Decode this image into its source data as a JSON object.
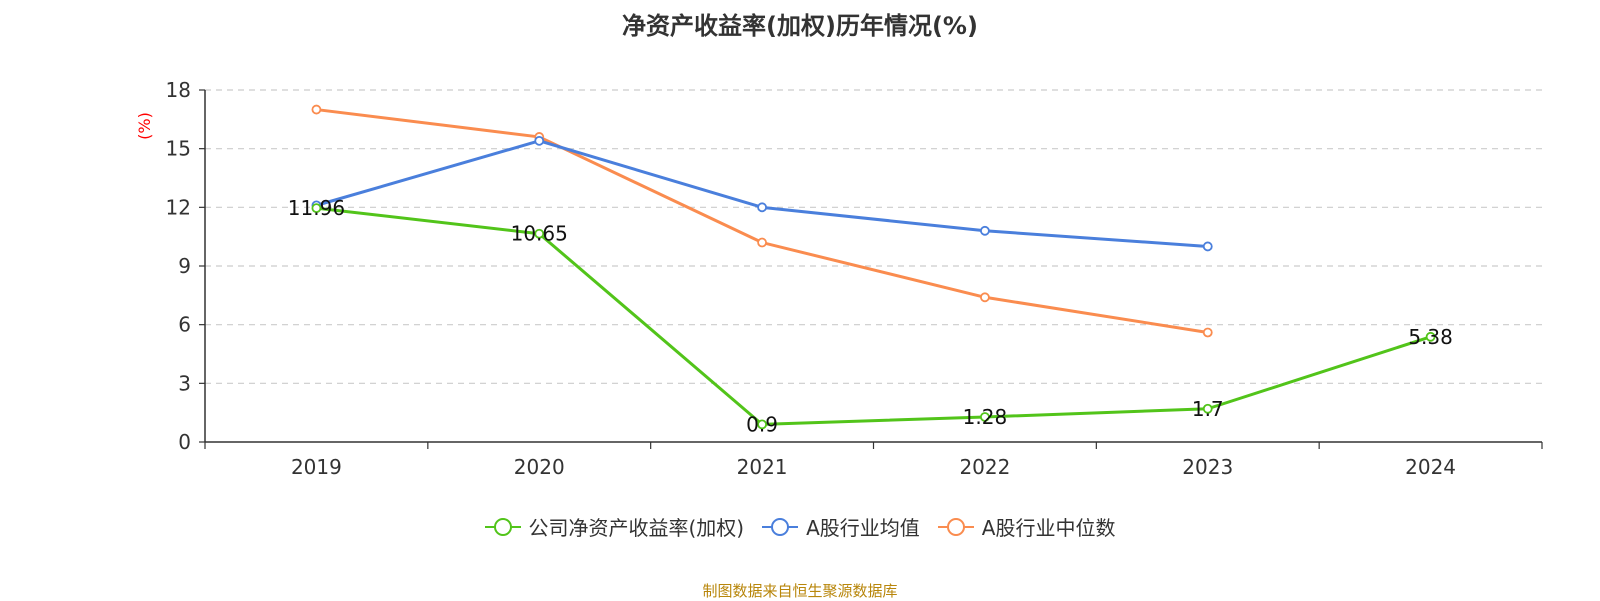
{
  "chart_data": {
    "type": "line",
    "title": "净资产收益率(加权)历年情况(%)",
    "ylabel": "(%)",
    "xlabel": "",
    "categories": [
      "2019",
      "2020",
      "2021",
      "2022",
      "2023",
      "2024"
    ],
    "ylim": [
      0,
      18
    ],
    "yticks": [
      0,
      3,
      6,
      9,
      12,
      15,
      18
    ],
    "grid": true,
    "legend_position": "bottom",
    "series": [
      {
        "name": "公司净资产收益率(加权)",
        "color": "#52c41a",
        "values": [
          11.96,
          10.65,
          0.9,
          1.28,
          1.7,
          5.38
        ],
        "labels": [
          "11.96",
          "10.65",
          "0.9",
          "1.28",
          "1.7",
          "5.38"
        ]
      },
      {
        "name": "A股行业均值",
        "color": "#4a7fdc",
        "values": [
          12.1,
          15.4,
          12.0,
          10.8,
          10.0,
          null
        ]
      },
      {
        "name": "A股行业中位数",
        "color": "#fa8c4f",
        "values": [
          17.0,
          15.6,
          10.2,
          7.4,
          5.6,
          null
        ]
      }
    ]
  },
  "source_note": "制图数据来自恒生聚源数据库"
}
